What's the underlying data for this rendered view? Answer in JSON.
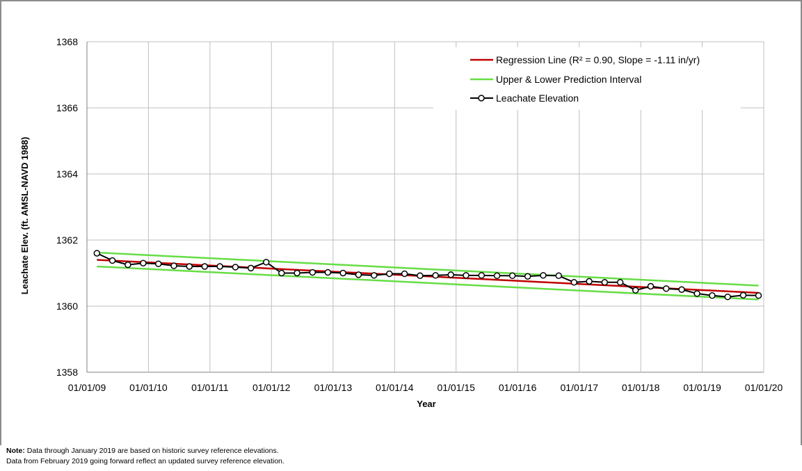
{
  "chart_data": {
    "type": "line",
    "title": "",
    "xlabel": "Year",
    "ylabel": "Leachate Elev. (ft. AMSL-NAVD 1988)",
    "ylim": [
      1358,
      1368
    ],
    "yticks": [
      "1358",
      "1360",
      "1362",
      "1364",
      "1366",
      "1368"
    ],
    "xlim": [
      "2009-01-01",
      "2020-01-01"
    ],
    "xticks": [
      "01/01/09",
      "01/01/10",
      "01/01/11",
      "01/01/12",
      "01/01/13",
      "01/01/14",
      "01/01/15",
      "01/01/16",
      "01/01/17",
      "01/01/18",
      "01/01/19",
      "01/01/20"
    ],
    "grid": true,
    "legend_position": "top-right",
    "series": [
      {
        "name": "Regression Line (R² = 0.90, Slope = -1.11 in/yr)",
        "color": "#c00000",
        "x": [
          "2009-03-01",
          "2019-12-01"
        ],
        "y": [
          1361.4,
          1360.4
        ]
      },
      {
        "name": "Upper & Lower Prediction Interval",
        "color": "#66dd44",
        "x": [
          "2009-03-01",
          "2019-12-01"
        ],
        "y": [
          1361.62,
          1360.62
        ],
        "lower_y": [
          1361.2,
          1360.2
        ]
      },
      {
        "name": "Leachate Elevation",
        "color": "#000000",
        "marker": "circle",
        "x": [
          "2009-03-01",
          "2009-06-01",
          "2009-09-01",
          "2009-12-01",
          "2010-03-01",
          "2010-06-01",
          "2010-09-01",
          "2010-12-01",
          "2011-03-01",
          "2011-06-01",
          "2011-09-01",
          "2011-12-01",
          "2012-03-01",
          "2012-06-01",
          "2012-09-01",
          "2012-12-01",
          "2013-03-01",
          "2013-06-01",
          "2013-09-01",
          "2013-12-01",
          "2014-03-01",
          "2014-06-01",
          "2014-09-01",
          "2014-12-01",
          "2015-03-01",
          "2015-06-01",
          "2015-09-01",
          "2015-12-01",
          "2016-03-01",
          "2016-06-01",
          "2016-09-01",
          "2016-12-01",
          "2017-03-01",
          "2017-06-01",
          "2017-09-01",
          "2017-12-01",
          "2018-03-01",
          "2018-06-01",
          "2018-09-01",
          "2018-12-01",
          "2019-03-01",
          "2019-06-01",
          "2019-09-01",
          "2019-12-01"
        ],
        "y": [
          1361.6,
          1361.38,
          1361.25,
          1361.3,
          1361.28,
          1361.22,
          1361.2,
          1361.2,
          1361.2,
          1361.18,
          1361.15,
          1361.33,
          1361.0,
          1361.0,
          1361.02,
          1361.02,
          1361.0,
          1360.95,
          1360.93,
          1360.98,
          1360.98,
          1360.92,
          1360.93,
          1360.95,
          1360.93,
          1360.93,
          1360.92,
          1360.92,
          1360.9,
          1360.93,
          1360.92,
          1360.72,
          1360.75,
          1360.72,
          1360.72,
          1360.48,
          1360.6,
          1360.53,
          1360.5,
          1360.38,
          1360.32,
          1360.28,
          1360.33,
          1360.32
        ]
      }
    ]
  },
  "note": {
    "label": "Note:",
    "line1": "Data through January 2019 are based on historic survey reference elevations.",
    "line2": "Data from February 2019 going forward reflect an updated survey reference elevation."
  }
}
